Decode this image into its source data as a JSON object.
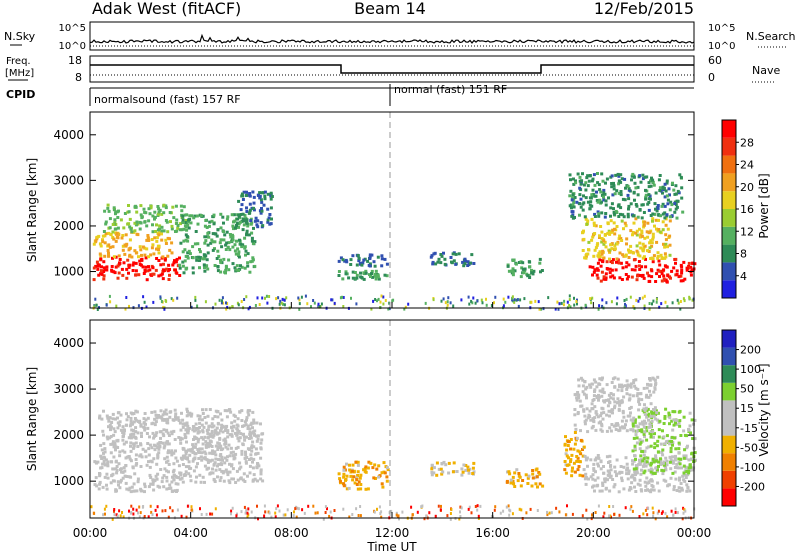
{
  "header": {
    "title": "Adak West (fitACF)",
    "beam": "Beam 14",
    "date": "12/Feb/2015"
  },
  "strips": {
    "nsky_label": "N.Sky",
    "nsearch_label": "N.Search",
    "nsky_ticks": [
      "10^5",
      "10^0"
    ],
    "nsearch_ticks": [
      "10^5",
      "10^0"
    ],
    "freq_label": [
      "Freq.",
      "[MHz]"
    ],
    "freq_ticks": [
      "18",
      "8"
    ],
    "nave_label": "Nave",
    "nave_ticks": [
      "60",
      "0"
    ],
    "cpid_label": "CPID",
    "cpid_modes": [
      "normalsound (fast) 157 RF",
      "normal (fast) 151 RF"
    ]
  },
  "colors": {
    "power": [
      "#2020e0",
      "#3050b0",
      "#2e8b57",
      "#55b060",
      "#9acd32",
      "#e8d020",
      "#f0a020",
      "#f07010",
      "#f03010",
      "#ff0000"
    ],
    "velocity": [
      "#ff0000",
      "#f04000",
      "#f08000",
      "#f0b000",
      "#c0c0c0",
      "#c0c0c0",
      "#7cd030",
      "#2e8b57",
      "#3050b0",
      "#2020c0"
    ]
  },
  "chart_data": [
    {
      "type": "heatmap",
      "panel": "power",
      "ylabel": "Slant Range [km]",
      "yticks": [
        1000,
        2000,
        3000,
        4000
      ],
      "ylim": [
        200,
        4500
      ],
      "xlim": [
        0,
        24
      ],
      "colorbar_label": "Power [dB]",
      "colorbar_ticks": [
        "4",
        "8",
        "12",
        "16",
        "20",
        "24",
        "28"
      ],
      "colorbar_range": [
        0,
        32
      ],
      "regions": [
        {
          "x": [
            0.1,
            3.6
          ],
          "y": [
            850,
            1350
          ],
          "value": 30
        },
        {
          "x": [
            0.1,
            3.2
          ],
          "y": [
            1350,
            1900
          ],
          "value": 20
        },
        {
          "x": [
            0.5,
            3.8
          ],
          "y": [
            1900,
            2500
          ],
          "value": 12
        },
        {
          "x": [
            3.5,
            6.5
          ],
          "y": [
            1000,
            2300
          ],
          "value": 10
        },
        {
          "x": [
            5.8,
            7.2
          ],
          "y": [
            2000,
            2800
          ],
          "value": 6
        },
        {
          "x": [
            9.8,
            11.8
          ],
          "y": [
            1150,
            1400
          ],
          "value": 6
        },
        {
          "x": [
            9.8,
            11.8
          ],
          "y": [
            850,
            1050
          ],
          "value": 10
        },
        {
          "x": [
            13.5,
            15.2
          ],
          "y": [
            1150,
            1450
          ],
          "value": 6
        },
        {
          "x": [
            16.5,
            18.0
          ],
          "y": [
            900,
            1300
          ],
          "value": 10
        },
        {
          "x": [
            19.8,
            24.0
          ],
          "y": [
            800,
            1300
          ],
          "value": 30
        },
        {
          "x": [
            19.5,
            23.0
          ],
          "y": [
            1300,
            2200
          ],
          "value": 18
        },
        {
          "x": [
            19.0,
            23.5
          ],
          "y": [
            2200,
            3200
          ],
          "value": 8
        }
      ]
    },
    {
      "type": "heatmap",
      "panel": "velocity",
      "ylabel": "Slant Range [km]",
      "yticks": [
        1000,
        2000,
        3000,
        4000
      ],
      "ylim": [
        200,
        4500
      ],
      "xlim": [
        0,
        24
      ],
      "colorbar_label": "Velocity [m s⁻¹]",
      "colorbar_ticks": [
        "-200",
        "-100",
        "-50",
        "-15",
        "15",
        "50",
        "100",
        "200"
      ],
      "colorbar_range": [
        -250,
        250
      ],
      "regions": [
        {
          "x": [
            0.1,
            3.6
          ],
          "y": [
            800,
            1500
          ],
          "value": 0
        },
        {
          "x": [
            0.3,
            6.5
          ],
          "y": [
            1500,
            2600
          ],
          "value": 0
        },
        {
          "x": [
            3.6,
            6.8
          ],
          "y": [
            1000,
            2300
          ],
          "value": 0
        },
        {
          "x": [
            9.8,
            11.8
          ],
          "y": [
            850,
            1450
          ],
          "value": -80
        },
        {
          "x": [
            13.5,
            15.2
          ],
          "y": [
            1150,
            1450
          ],
          "value": -50
        },
        {
          "x": [
            16.5,
            18.0
          ],
          "y": [
            900,
            1300
          ],
          "value": -80
        },
        {
          "x": [
            18.8,
            19.6
          ],
          "y": [
            1100,
            2100
          ],
          "value": -80
        },
        {
          "x": [
            19.6,
            24.0
          ],
          "y": [
            800,
            1600
          ],
          "value": 0
        },
        {
          "x": [
            21.5,
            24.0
          ],
          "y": [
            1200,
            2600
          ],
          "value": 60
        },
        {
          "x": [
            19.2,
            22.5
          ],
          "y": [
            2100,
            3300
          ],
          "value": 0
        }
      ]
    }
  ],
  "x_axis": {
    "ticks": [
      "00:00",
      "04:00",
      "08:00",
      "12:00",
      "16:00",
      "20:00",
      "00:00"
    ],
    "label": "Time UT"
  }
}
